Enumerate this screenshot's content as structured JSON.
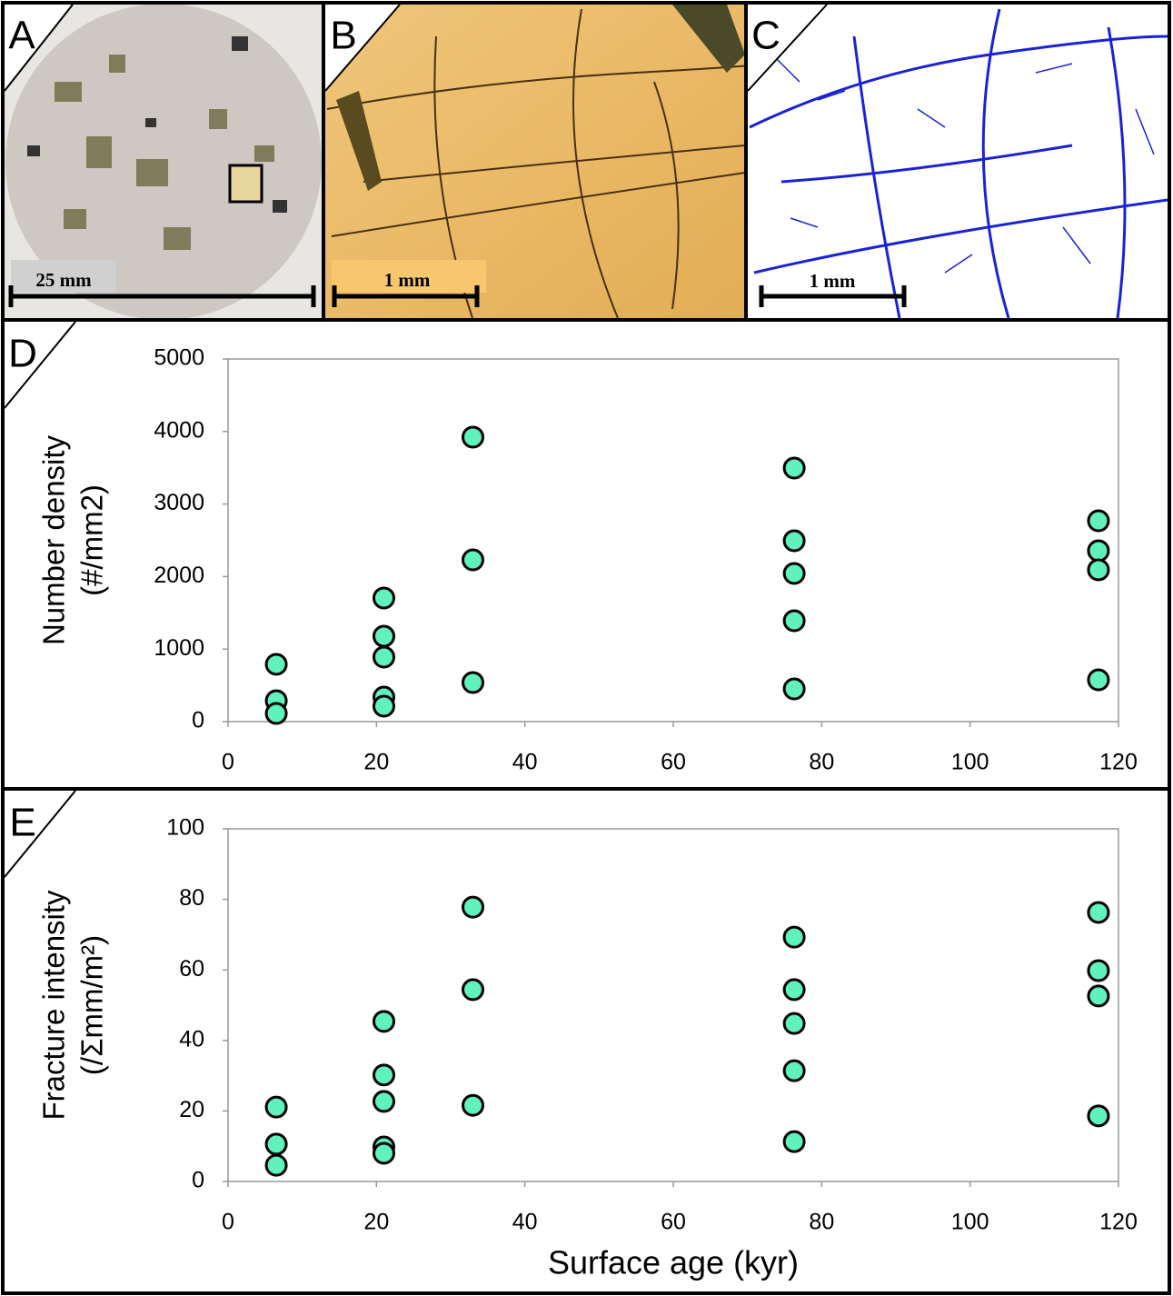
{
  "panels": [
    {
      "label": "A",
      "scale_bar": "25 mm"
    },
    {
      "label": "B",
      "scale_bar": "1 mm"
    },
    {
      "label": "C",
      "scale_bar": "1 mm"
    }
  ],
  "chart_data": [
    {
      "type": "scatter",
      "label": "D",
      "ylabel": [
        "Number density",
        "(#/mm2)"
      ],
      "x": [
        6.5,
        6.5,
        6.5,
        21,
        21,
        21,
        21,
        21,
        33,
        33,
        33,
        76.3,
        76.3,
        76.3,
        76.3,
        76.3,
        117.3,
        117.3,
        117.3,
        117.3
      ],
      "values": [
        790,
        288,
        113,
        1704,
        1178,
        890,
        338,
        213,
        3922,
        2230,
        539,
        3496,
        2494,
        2043,
        1391,
        451,
        2769,
        2356,
        2093,
        576
      ],
      "color": "#5ff2bd",
      "xlim": [
        0,
        120
      ],
      "xticks": [
        0,
        20,
        40,
        60,
        80,
        100,
        120
      ],
      "ylim": [
        0,
        5000
      ],
      "yticks": [
        0,
        1000,
        2000,
        3000,
        4000,
        5000
      ]
    },
    {
      "type": "scatter",
      "label": "E",
      "ylabel": [
        "Fracture intensity",
        "(/Σmm/m²)"
      ],
      "xlabel": "Surface age (kyr)",
      "x": [
        6.5,
        6.5,
        6.5,
        21,
        21,
        21,
        21,
        21,
        33,
        33,
        33,
        76.3,
        76.3,
        76.3,
        76.3,
        76.3,
        117.3,
        117.3,
        117.3,
        117.3
      ],
      "values": [
        21.1,
        10.6,
        4.6,
        45.4,
        30.2,
        22.7,
        9.8,
        8.0,
        77.8,
        54.4,
        21.6,
        69.3,
        54.4,
        44.8,
        31.4,
        11.3,
        76.3,
        59.8,
        52.6,
        18.6
      ],
      "color": "#5ff2bd",
      "xlim": [
        0,
        120
      ],
      "xticks": [
        0,
        20,
        40,
        60,
        80,
        100,
        120
      ],
      "ylim": [
        0,
        100
      ],
      "yticks": [
        0,
        20,
        40,
        60,
        80,
        100
      ]
    }
  ]
}
